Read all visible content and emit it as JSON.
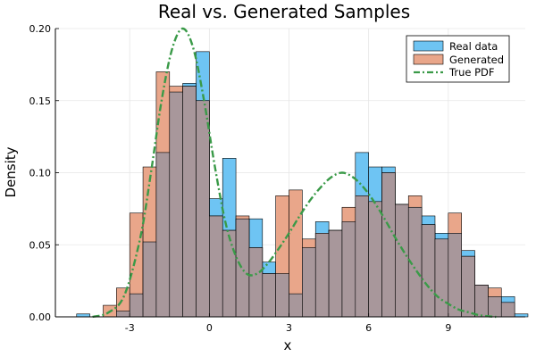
{
  "chart_data": {
    "type": "histogram",
    "title": "Real vs. Generated Samples",
    "xlabel": "x",
    "ylabel": "Density",
    "xlim": [
      -5.8,
      11.9
    ],
    "ylim": [
      0,
      0.2
    ],
    "xticks": [
      -3,
      0,
      3,
      6,
      9
    ],
    "xtick_labels": [
      "-3",
      "0",
      "3",
      "6",
      "9"
    ],
    "yticks": [
      0,
      0.05,
      0.1,
      0.15,
      0.2
    ],
    "ytick_labels": [
      "0.00",
      "0.05",
      "0.10",
      "0.15",
      "0.20"
    ],
    "grid": true,
    "legend_position": "top-right",
    "bin_width": 0.5,
    "colors": {
      "real": "#6ec4f3",
      "generated": "#e9a68a",
      "overlap": "#a8979b",
      "true_pdf": "#3a9a48"
    },
    "series": [
      {
        "name": "Real data",
        "type": "histogram",
        "bin_edges_start": -5.0,
        "values": [
          0.002,
          0,
          0,
          0.004,
          0.016,
          0.052,
          0.114,
          0.156,
          0.162,
          0.184,
          0.082,
          0.11,
          0.068,
          0.068,
          0.038,
          0.03,
          0.016,
          0.048,
          0.066,
          0.06,
          0.066,
          0.114,
          0.104,
          0.104,
          0.078,
          0.076,
          0.07,
          0.058,
          0.058,
          0.046,
          0.022,
          0.014,
          0.014,
          0.002
        ]
      },
      {
        "name": "Generated",
        "type": "histogram",
        "bin_edges_start": -4.0,
        "values": [
          0.008,
          0.02,
          0.072,
          0.104,
          0.17,
          0.16,
          0.16,
          0.15,
          0.07,
          0.06,
          0.07,
          0.048,
          0.03,
          0.084,
          0.088,
          0.054,
          0.058,
          0.06,
          0.076,
          0.084,
          0.08,
          0.1,
          0.078,
          0.084,
          0.064,
          0.054,
          0.072,
          0.042,
          0.022,
          0.02,
          0.01
        ]
      },
      {
        "name": "True PDF",
        "type": "line",
        "style": "dash-dot",
        "x": [
          -4.4,
          -3.8,
          -3.2,
          -2.6,
          -2.2,
          -1.8,
          -1.4,
          -1.0,
          -0.6,
          -0.2,
          0.2,
          0.6,
          1.0,
          1.4,
          1.8,
          2.2,
          2.6,
          3.0,
          3.4,
          3.8,
          4.2,
          4.6,
          5.0,
          5.4,
          5.8,
          6.2,
          6.6,
          7.0,
          7.4,
          7.8,
          8.2,
          8.6,
          9.0,
          9.4,
          9.8,
          10.2,
          10.8
        ],
        "y": [
          0.0,
          0.003,
          0.015,
          0.055,
          0.1,
          0.15,
          0.186,
          0.2,
          0.186,
          0.15,
          0.105,
          0.066,
          0.042,
          0.03,
          0.03,
          0.037,
          0.047,
          0.058,
          0.07,
          0.081,
          0.09,
          0.097,
          0.1,
          0.097,
          0.09,
          0.08,
          0.068,
          0.055,
          0.043,
          0.032,
          0.022,
          0.014,
          0.009,
          0.005,
          0.003,
          0.001,
          0.0
        ]
      }
    ]
  }
}
